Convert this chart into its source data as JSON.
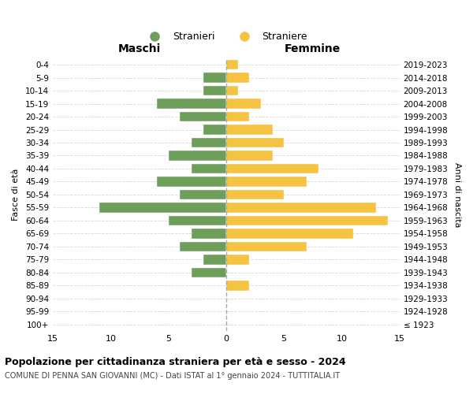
{
  "age_groups": [
    "100+",
    "95-99",
    "90-94",
    "85-89",
    "80-84",
    "75-79",
    "70-74",
    "65-69",
    "60-64",
    "55-59",
    "50-54",
    "45-49",
    "40-44",
    "35-39",
    "30-34",
    "25-29",
    "20-24",
    "15-19",
    "10-14",
    "5-9",
    "0-4"
  ],
  "birth_years": [
    "≤ 1923",
    "1924-1928",
    "1929-1933",
    "1934-1938",
    "1939-1943",
    "1944-1948",
    "1949-1953",
    "1954-1958",
    "1959-1963",
    "1964-1968",
    "1969-1973",
    "1974-1978",
    "1979-1983",
    "1984-1988",
    "1989-1993",
    "1994-1998",
    "1999-2003",
    "2004-2008",
    "2009-2013",
    "2014-2018",
    "2019-2023"
  ],
  "maschi": [
    0,
    0,
    0,
    0,
    3,
    2,
    4,
    3,
    5,
    11,
    4,
    6,
    3,
    5,
    3,
    2,
    4,
    6,
    2,
    2,
    0
  ],
  "femmine": [
    0,
    0,
    0,
    2,
    0,
    2,
    7,
    11,
    14,
    13,
    5,
    7,
    8,
    4,
    5,
    4,
    2,
    3,
    1,
    2,
    1
  ],
  "maschi_color": "#6d9e5a",
  "femmine_color": "#f5c242",
  "background_color": "#ffffff",
  "grid_color": "#cccccc",
  "xlim": 15,
  "title": "Popolazione per cittadinanza straniera per età e sesso - 2024",
  "subtitle": "COMUNE DI PENNA SAN GIOVANNI (MC) - Dati ISTAT al 1° gennaio 2024 - TUTTITALIA.IT",
  "legend_maschi": "Stranieri",
  "legend_femmine": "Straniere",
  "xlabel_left": "Maschi",
  "xlabel_right": "Femmine",
  "ylabel_left": "Fasce di età",
  "ylabel_right": "Anni di nascita"
}
